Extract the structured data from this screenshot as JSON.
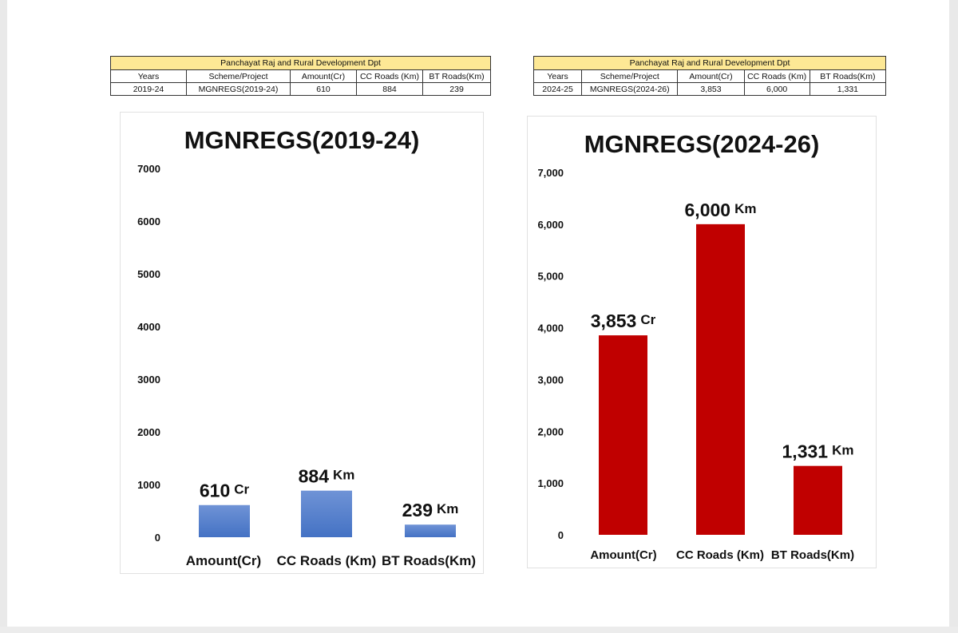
{
  "tables": [
    {
      "title": "Panchayat Raj and Rural Development Dpt",
      "headers": [
        "Years",
        "Scheme/Project",
        "Amount(Cr)",
        "CC Roads (Km)",
        "BT Roads(Km)"
      ],
      "row": [
        "2019-24",
        "MGNREGS(2019-24)",
        "610",
        "884",
        "239"
      ]
    },
    {
      "title": "Panchayat Raj and Rural Development Dpt",
      "headers": [
        "Years",
        "Scheme/Project",
        "Amount(Cr)",
        "CC Roads (Km)",
        "BT Roads(Km)"
      ],
      "row": [
        "2024-25",
        "MGNREGS(2024-26)",
        "3,853",
        "6,000",
        "1,331"
      ]
    }
  ],
  "chart_data": [
    {
      "type": "bar",
      "title": "MGNREGS(2019-24)",
      "categories": [
        "Amount(Cr)",
        "CC Roads (Km)",
        "BT Roads(Km)"
      ],
      "values": [
        610,
        884,
        239
      ],
      "data_labels": [
        "610",
        "884",
        "239"
      ],
      "data_label_units": [
        "Cr",
        "Km",
        "Km"
      ],
      "ylim": [
        0,
        7000
      ],
      "yticks": [
        "0",
        "1000",
        "2000",
        "3000",
        "4000",
        "5000",
        "6000",
        "7000"
      ],
      "grid": false,
      "color": "#4472c4",
      "gradient": true
    },
    {
      "type": "bar",
      "title": "MGNREGS(2024-26)",
      "categories": [
        "Amount(Cr)",
        "CC Roads (Km)",
        "BT Roads(Km)"
      ],
      "values": [
        3853,
        6000,
        1331
      ],
      "data_labels": [
        "3,853",
        "6,000",
        "1,331"
      ],
      "data_label_units": [
        "Cr",
        "Km",
        "Km"
      ],
      "ylim": [
        0,
        7000
      ],
      "yticks": [
        "0",
        "1,000",
        "2,000",
        "3,000",
        "4,000",
        "5,000",
        "6,000",
        "7,000"
      ],
      "grid": false,
      "color": "#c00000",
      "gradient": false
    }
  ]
}
